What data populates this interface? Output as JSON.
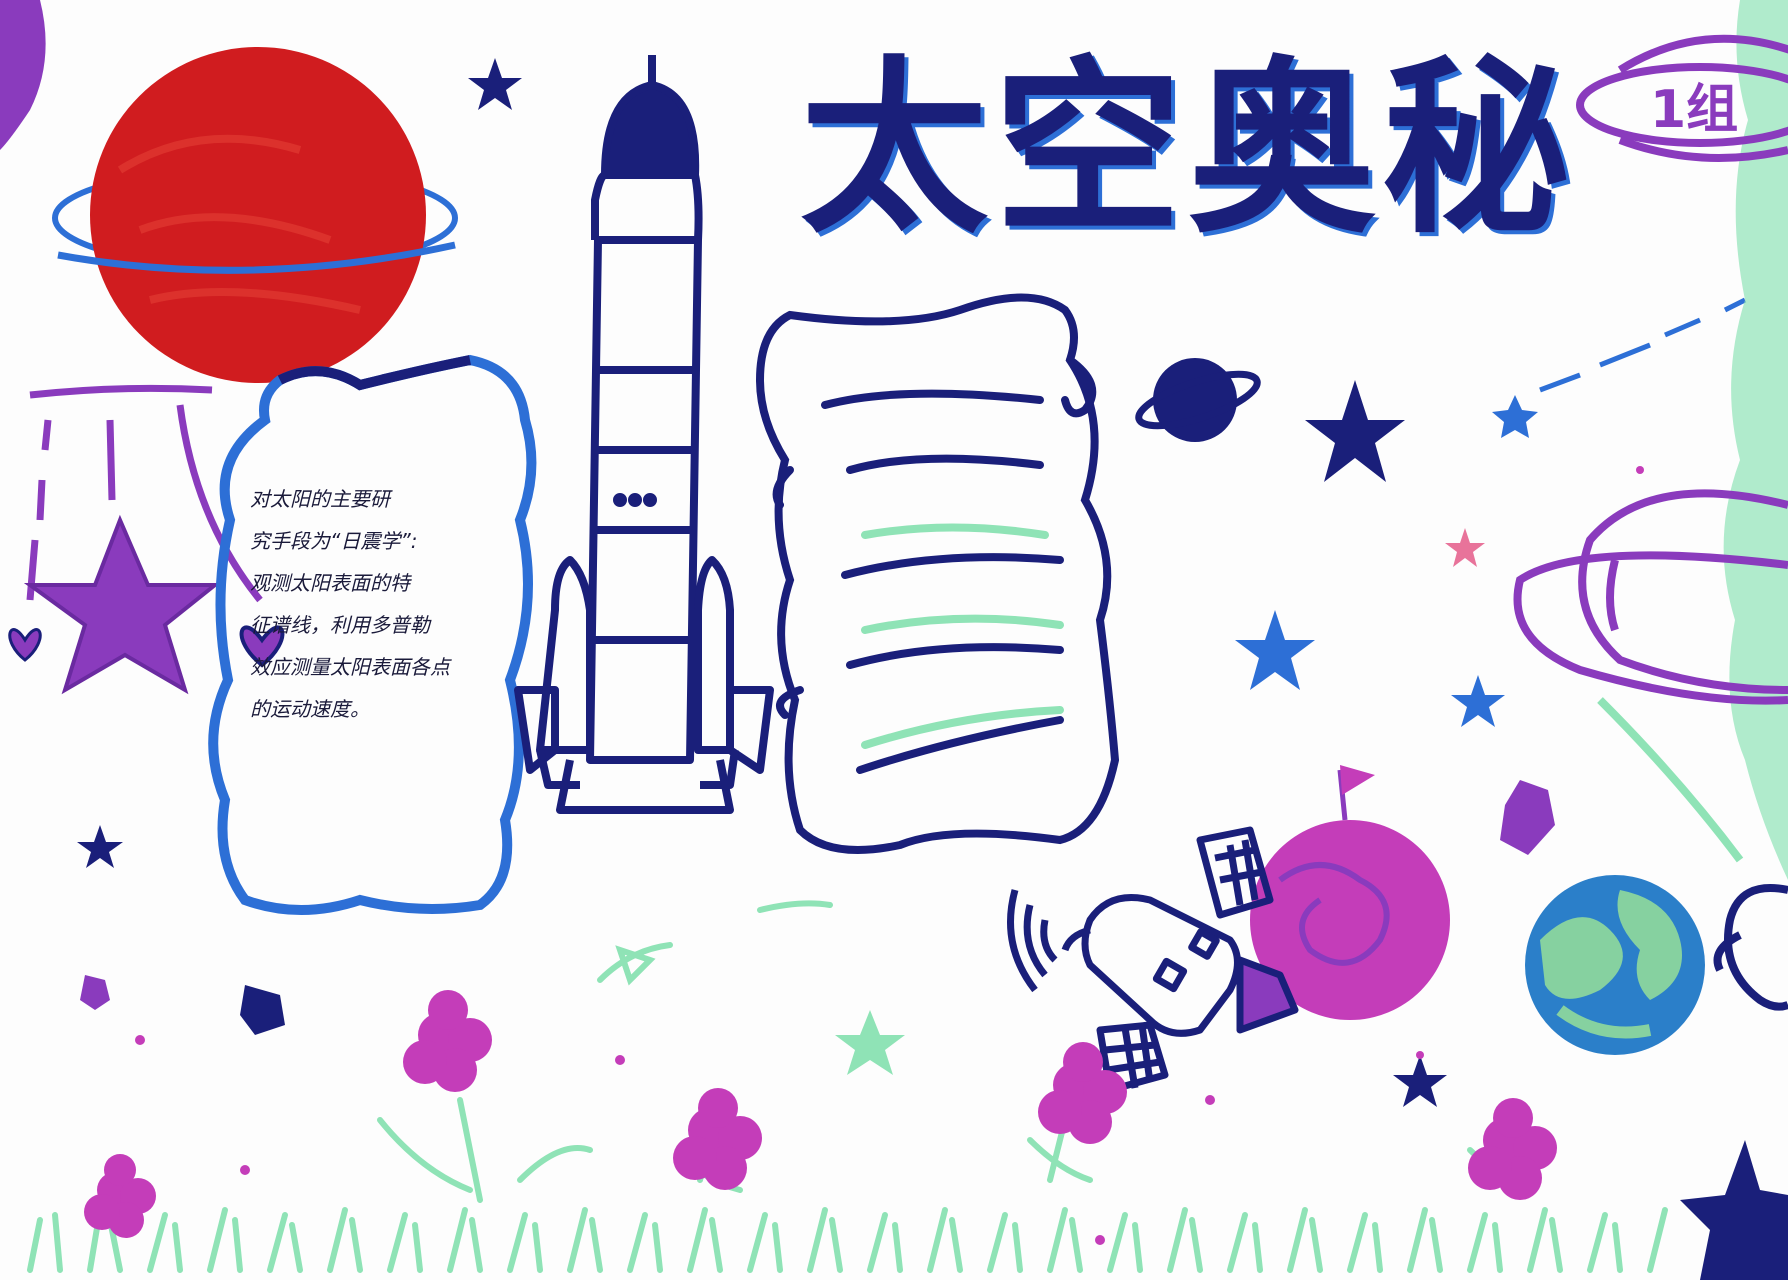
{
  "poster": {
    "title": "太空奥秘",
    "group": "1组",
    "note_lines": [
      "对太阳的主要研",
      "究手段为“日震学”:",
      "观测太阳表面的特",
      "征谱线，利用多普勒",
      "效应测量太阳表面各点",
      "的运动速度。"
    ]
  },
  "colors": {
    "paper": "#fdfdfd",
    "navy": "#1a1f7a",
    "blue": "#2d6fd6",
    "red_planet": "#d01c1f",
    "purple": "#8a3bbd",
    "magenta": "#c43db9",
    "mint": "#8fe3b6",
    "earth_blue": "#2b7fc9",
    "earth_green": "#86d1a0"
  },
  "icons": [
    "ringed-planet-icon",
    "rocket-icon",
    "scroll-icon",
    "star-icon",
    "satellite-icon",
    "earth-icon",
    "flower-icon",
    "grass-icon",
    "heart-icon"
  ]
}
